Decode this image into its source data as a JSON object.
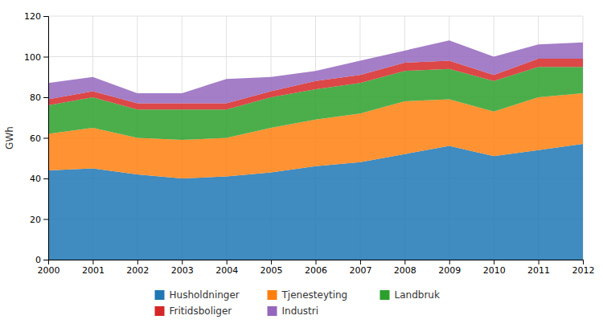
{
  "chart_data": {
    "type": "area",
    "stacked": true,
    "x": [
      2000,
      2001,
      2002,
      2003,
      2004,
      2005,
      2006,
      2007,
      2008,
      2009,
      2010,
      2011,
      2012
    ],
    "series": [
      {
        "name": "Husholdninger",
        "values": [
          44,
          45,
          42,
          40,
          41,
          43,
          46,
          48,
          52,
          56,
          51,
          54,
          57
        ]
      },
      {
        "name": "Tjenesteyting",
        "values": [
          18,
          20,
          18,
          19,
          19,
          22,
          23,
          24,
          26,
          23,
          22,
          26,
          25
        ]
      },
      {
        "name": "Landbruk",
        "values": [
          14,
          15,
          14,
          15,
          14,
          15,
          15,
          15,
          15,
          15,
          15,
          15,
          13
        ]
      },
      {
        "name": "Fritidsboliger",
        "values": [
          3,
          3,
          3,
          3,
          3,
          3,
          4,
          4,
          4,
          4,
          3,
          4,
          4
        ]
      },
      {
        "name": "Industri",
        "values": [
          8,
          7,
          5,
          5,
          12,
          7,
          5,
          7,
          6,
          10,
          9,
          7,
          8
        ]
      }
    ],
    "y_label": "GWh",
    "xlim": [
      2000,
      2012
    ],
    "xticks": [
      2000,
      2001,
      2002,
      2003,
      2004,
      2005,
      2006,
      2007,
      2008,
      2009,
      2010,
      2011,
      2012
    ],
    "ylim": [
      0,
      120
    ],
    "yticks": [
      0,
      20,
      40,
      60,
      80,
      100,
      120
    ],
    "grid": true,
    "legend": "bottom"
  }
}
